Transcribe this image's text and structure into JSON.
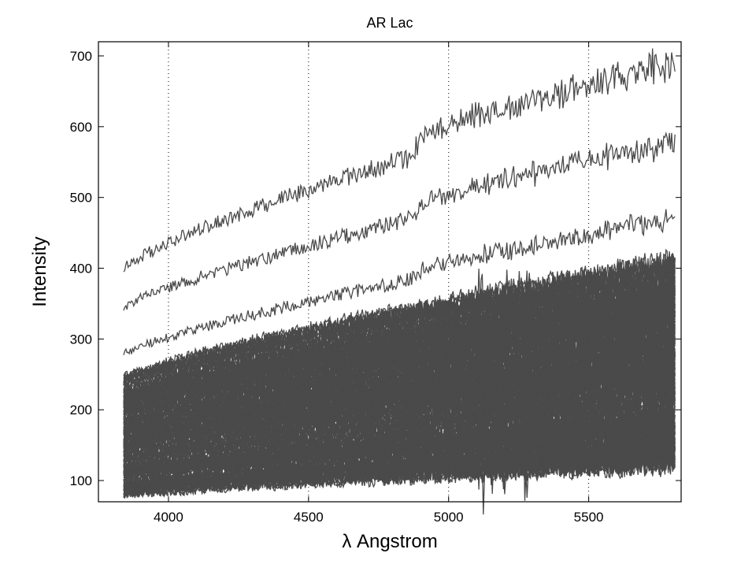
{
  "chart_data": {
    "type": "line",
    "title": "AR Lac",
    "xlabel": "λ  Angstrom",
    "ylabel": "Intensity",
    "xlim": [
      3750,
      5830
    ],
    "ylim": [
      70,
      720
    ],
    "xticks": [
      4000,
      4500,
      5000,
      5500
    ],
    "yticks": [
      100,
      200,
      300,
      400,
      500,
      600,
      700
    ],
    "grid": "vertical dotted lines at x ticks",
    "line_color": "#4a4a4a",
    "wavelength_range": [
      3840,
      5810
    ],
    "series_description": "many overlapping stellar spectra; top three separated, dense band below",
    "series": [
      {
        "start": 400,
        "end": 665,
        "noise": 8,
        "jump": 35,
        "jump_at": 4870
      },
      {
        "start": 344,
        "end": 555,
        "noise": 7,
        "jump": 30,
        "jump_at": 4870
      },
      {
        "start": 278,
        "end": 458,
        "noise": 6,
        "jump": 15,
        "jump_at": 4870
      },
      {
        "start": 245,
        "end": 400,
        "noise": 6
      },
      {
        "start": 238,
        "end": 390,
        "noise": 6
      },
      {
        "start": 230,
        "end": 380,
        "noise": 6
      },
      {
        "start": 222,
        "end": 370,
        "noise": 6
      },
      {
        "start": 214,
        "end": 360,
        "noise": 6
      },
      {
        "start": 206,
        "end": 350,
        "noise": 6
      },
      {
        "start": 198,
        "end": 340,
        "noise": 6
      },
      {
        "start": 190,
        "end": 330,
        "noise": 6
      },
      {
        "start": 182,
        "end": 320,
        "noise": 6
      },
      {
        "start": 175,
        "end": 310,
        "noise": 6
      },
      {
        "start": 168,
        "end": 300,
        "noise": 6
      },
      {
        "start": 161,
        "end": 290,
        "noise": 6
      },
      {
        "start": 154,
        "end": 280,
        "noise": 6
      },
      {
        "start": 147,
        "end": 270,
        "noise": 6
      },
      {
        "start": 140,
        "end": 260,
        "noise": 6
      },
      {
        "start": 134,
        "end": 250,
        "noise": 5
      },
      {
        "start": 128,
        "end": 240,
        "noise": 5
      },
      {
        "start": 122,
        "end": 228,
        "noise": 5
      },
      {
        "start": 116,
        "end": 216,
        "noise": 5
      },
      {
        "start": 110,
        "end": 204,
        "noise": 5
      },
      {
        "start": 105,
        "end": 192,
        "noise": 5
      },
      {
        "start": 100,
        "end": 180,
        "noise": 5
      },
      {
        "start": 96,
        "end": 170,
        "noise": 5
      },
      {
        "start": 92,
        "end": 160,
        "noise": 5
      },
      {
        "start": 88,
        "end": 150,
        "noise": 5
      },
      {
        "start": 84,
        "end": 140,
        "noise": 5
      },
      {
        "start": 80,
        "end": 128,
        "noise": 5
      }
    ],
    "band": {
      "low_start": 80,
      "low_end": 125,
      "high_start": 245,
      "high_end": 410,
      "count": 140,
      "noise": 8
    }
  }
}
